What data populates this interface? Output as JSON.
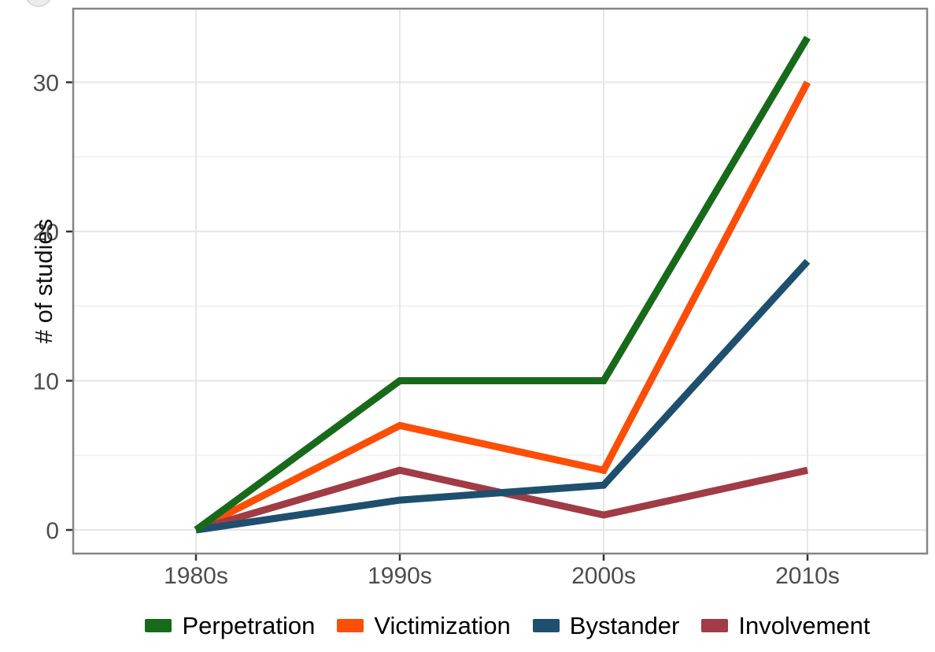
{
  "chart_data": {
    "type": "line",
    "title": "",
    "xlabel": "",
    "ylabel": "# of studies",
    "categories": [
      "1980s",
      "1990s",
      "2000s",
      "2010s"
    ],
    "series": [
      {
        "name": "Perpetration",
        "color": "#186a1b",
        "values": [
          0,
          10,
          10,
          33
        ]
      },
      {
        "name": "Victimization",
        "color": "#fc4e07",
        "values": [
          0,
          7,
          4,
          30
        ]
      },
      {
        "name": "Bystander",
        "color": "#1f4f6f",
        "values": [
          0,
          2,
          3,
          18
        ]
      },
      {
        "name": "Involvement",
        "color": "#a13b45",
        "values": [
          0,
          4,
          1,
          4
        ]
      }
    ],
    "y_ticks": [
      0,
      10,
      20,
      30
    ],
    "ylim": [
      0,
      35
    ],
    "grid": "horizontal major+minor, vertical at categories",
    "legend_position": "bottom"
  }
}
